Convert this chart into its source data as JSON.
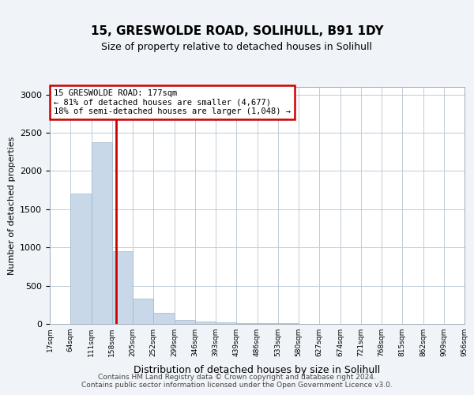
{
  "title": "15, GRESWOLDE ROAD, SOLIHULL, B91 1DY",
  "subtitle": "Size of property relative to detached houses in Solihull",
  "xlabel": "Distribution of detached houses by size in Solihull",
  "ylabel": "Number of detached properties",
  "bar_values": [
    0,
    1700,
    2380,
    950,
    330,
    140,
    50,
    30,
    20,
    15,
    10,
    8,
    5,
    4,
    3,
    2,
    2,
    1,
    1,
    0
  ],
  "bin_labels": [
    "17sqm",
    "64sqm",
    "111sqm",
    "158sqm",
    "205sqm",
    "252sqm",
    "299sqm",
    "346sqm",
    "393sqm",
    "439sqm",
    "486sqm",
    "533sqm",
    "580sqm",
    "627sqm",
    "674sqm",
    "721sqm",
    "768sqm",
    "815sqm",
    "862sqm",
    "909sqm",
    "956sqm"
  ],
  "bar_color": "#c8d8e8",
  "bar_edge_color": "#a0b8cc",
  "vline_color": "#cc0000",
  "annotation_text": "15 GRESWOLDE ROAD: 177sqm\n← 81% of detached houses are smaller (4,677)\n18% of semi-detached houses are larger (1,048) →",
  "annotation_box_color": "#ffffff",
  "annotation_border_color": "#cc0000",
  "ylim": [
    0,
    3100
  ],
  "yticks": [
    0,
    500,
    1000,
    1500,
    2000,
    2500,
    3000
  ],
  "footer": "Contains HM Land Registry data © Crown copyright and database right 2024.\nContains public sector information licensed under the Open Government Licence v3.0.",
  "bg_color": "#f0f4f8",
  "plot_bg_color": "#ffffff",
  "grid_color": "#c0ccd8"
}
